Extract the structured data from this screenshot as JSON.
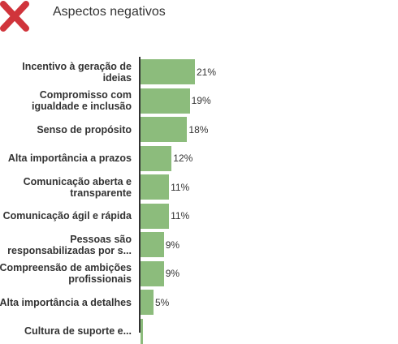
{
  "header": {
    "title": "Aspectos negativos",
    "icon": "close-x-icon",
    "icon_color": "#d0343b"
  },
  "chart_data": {
    "type": "bar",
    "orientation": "horizontal",
    "title": "",
    "xlabel": "",
    "ylabel": "",
    "categories": [
      "Incentivo à geração de ideias",
      "Compromisso com igualdade e inclusão",
      "Senso de propósito",
      "Alta importância a prazos",
      "Comunicação aberta e transparente",
      "Comunicação ágil e rápida",
      "Pessoas são responsabilizadas por s...",
      "Compreensão de ambições profissionais",
      "Alta importância a detalhes",
      "Cultura de suporte e..."
    ],
    "values": [
      21,
      19,
      18,
      12,
      11,
      11,
      9,
      9,
      5,
      1
    ],
    "value_labels": [
      "21%",
      "19%",
      "18%",
      "12%",
      "11%",
      "11%",
      "9%",
      "9%",
      "5%",
      ""
    ],
    "xlim": [
      0,
      21
    ],
    "bar_color": "#8cbc7c",
    "grid": false,
    "legend": "none"
  }
}
